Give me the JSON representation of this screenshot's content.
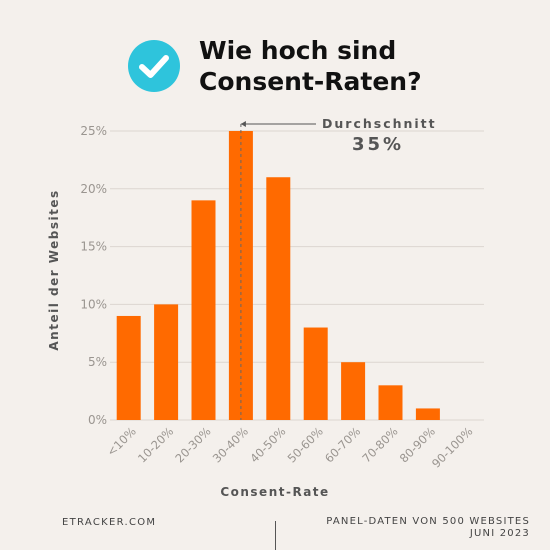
{
  "header": {
    "title_line1": "Wie hoch sind",
    "title_line2": "Consent-Raten?",
    "icon": "check-circle-icon",
    "icon_color": "#2ec4dc"
  },
  "chart_data": {
    "type": "bar",
    "categories": [
      "<10%",
      "10-20%",
      "20-30%",
      "30-40%",
      "40-50%",
      "50-60%",
      "60-70%",
      "70-80%",
      "80-90%",
      "90-100%"
    ],
    "values": [
      9,
      10,
      19,
      25,
      21,
      8,
      5,
      3,
      1,
      0
    ],
    "y_ticks": [
      "0%",
      "5%",
      "10%",
      "15%",
      "20%",
      "25%"
    ],
    "ylim": [
      0,
      25
    ],
    "ylabel": "Anteil der Websites",
    "xlabel": "Consent-Rate",
    "bar_color": "#ff6a00",
    "grid": true,
    "annotation": {
      "label": "Durchschnitt",
      "value_text": "35%",
      "x_value": 35
    }
  },
  "footer": {
    "left": "ETRACKER.COM",
    "right_line1": "PANEL-DATEN VON 500 WEBSITES",
    "right_line2": "JUNI 2023"
  }
}
